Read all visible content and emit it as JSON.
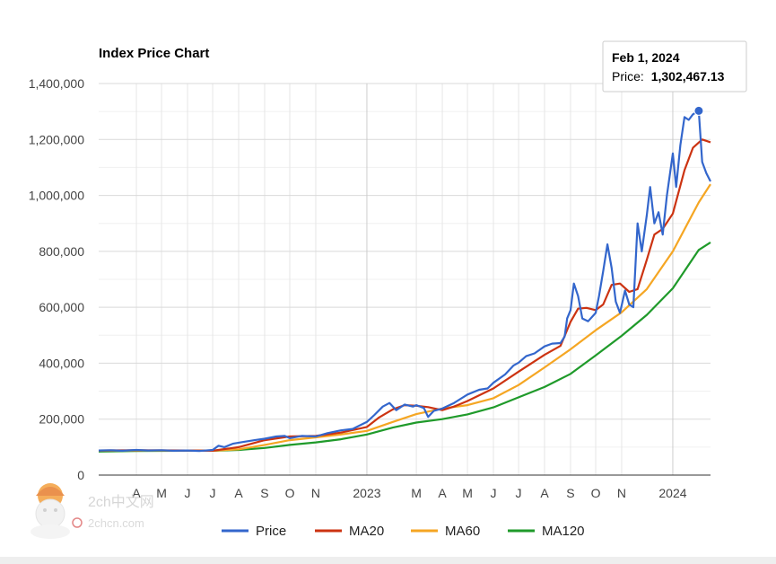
{
  "chart_data": {
    "type": "line",
    "title": "Index Price Chart",
    "xlabel": "",
    "ylabel": "",
    "ylim": [
      0,
      1400000
    ],
    "y_ticks": [
      0,
      200000,
      400000,
      600000,
      800000,
      1000000,
      1200000,
      1400000
    ],
    "y_tick_labels": [
      "0",
      "200,000",
      "400,000",
      "600,000",
      "800,000",
      "1,000,000",
      "1,200,000",
      "1,400,000"
    ],
    "xlim": [
      "2022-02-15",
      "2024-02-15"
    ],
    "x_ticks": [
      {
        "date": "2022-04-01",
        "label": "A"
      },
      {
        "date": "2022-05-01",
        "label": "M"
      },
      {
        "date": "2022-06-01",
        "label": "J"
      },
      {
        "date": "2022-07-01",
        "label": "J"
      },
      {
        "date": "2022-08-01",
        "label": "A"
      },
      {
        "date": "2022-09-01",
        "label": "S"
      },
      {
        "date": "2022-10-01",
        "label": "O"
      },
      {
        "date": "2022-11-01",
        "label": "N"
      },
      {
        "date": "2023-01-01",
        "label": "2023"
      },
      {
        "date": "2023-03-01",
        "label": "M"
      },
      {
        "date": "2023-04-01",
        "label": "A"
      },
      {
        "date": "2023-05-01",
        "label": "M"
      },
      {
        "date": "2023-06-01",
        "label": "J"
      },
      {
        "date": "2023-07-01",
        "label": "J"
      },
      {
        "date": "2023-08-01",
        "label": "A"
      },
      {
        "date": "2023-09-01",
        "label": "S"
      },
      {
        "date": "2023-10-01",
        "label": "O"
      },
      {
        "date": "2023-11-01",
        "label": "N"
      },
      {
        "date": "2024-01-01",
        "label": "2024"
      }
    ],
    "grid": true,
    "legend_position": "bottom",
    "series": [
      {
        "name": "Price",
        "color": "#3366cc",
        "points": [
          [
            "2022-02-15",
            88000
          ],
          [
            "2022-03-01",
            89000
          ],
          [
            "2022-03-15",
            87000
          ],
          [
            "2022-04-01",
            90000
          ],
          [
            "2022-04-15",
            88000
          ],
          [
            "2022-05-01",
            89000
          ],
          [
            "2022-05-15",
            87000
          ],
          [
            "2022-06-01",
            88000
          ],
          [
            "2022-06-15",
            86000
          ],
          [
            "2022-07-01",
            90000
          ],
          [
            "2022-07-08",
            105000
          ],
          [
            "2022-07-15",
            100000
          ],
          [
            "2022-07-25",
            112000
          ],
          [
            "2022-08-05",
            118000
          ],
          [
            "2022-08-20",
            125000
          ],
          [
            "2022-09-01",
            130000
          ],
          [
            "2022-09-15",
            138000
          ],
          [
            "2022-09-25",
            140000
          ],
          [
            "2022-10-01",
            132000
          ],
          [
            "2022-10-15",
            140000
          ],
          [
            "2022-11-01",
            138000
          ],
          [
            "2022-11-15",
            150000
          ],
          [
            "2022-12-01",
            160000
          ],
          [
            "2022-12-15",
            165000
          ],
          [
            "2023-01-01",
            190000
          ],
          [
            "2023-01-10",
            215000
          ],
          [
            "2023-01-20",
            245000
          ],
          [
            "2023-01-28",
            258000
          ],
          [
            "2023-02-05",
            232000
          ],
          [
            "2023-02-15",
            252000
          ],
          [
            "2023-02-25",
            245000
          ],
          [
            "2023-03-01",
            250000
          ],
          [
            "2023-03-10",
            240000
          ],
          [
            "2023-03-15",
            208000
          ],
          [
            "2023-03-22",
            230000
          ],
          [
            "2023-04-01",
            238000
          ],
          [
            "2023-04-15",
            258000
          ],
          [
            "2023-05-01",
            288000
          ],
          [
            "2023-05-15",
            305000
          ],
          [
            "2023-05-25",
            310000
          ],
          [
            "2023-06-01",
            330000
          ],
          [
            "2023-06-15",
            360000
          ],
          [
            "2023-06-25",
            392000
          ],
          [
            "2023-07-01",
            402000
          ],
          [
            "2023-07-10",
            425000
          ],
          [
            "2023-07-20",
            435000
          ],
          [
            "2023-08-01",
            460000
          ],
          [
            "2023-08-10",
            470000
          ],
          [
            "2023-08-20",
            472000
          ],
          [
            "2023-08-25",
            495000
          ],
          [
            "2023-08-28",
            560000
          ],
          [
            "2023-09-01",
            590000
          ],
          [
            "2023-09-05",
            685000
          ],
          [
            "2023-09-10",
            640000
          ],
          [
            "2023-09-15",
            560000
          ],
          [
            "2023-09-22",
            550000
          ],
          [
            "2023-10-01",
            580000
          ],
          [
            "2023-10-05",
            640000
          ],
          [
            "2023-10-10",
            730000
          ],
          [
            "2023-10-15",
            825000
          ],
          [
            "2023-10-20",
            740000
          ],
          [
            "2023-10-25",
            620000
          ],
          [
            "2023-10-30",
            580000
          ],
          [
            "2023-11-05",
            660000
          ],
          [
            "2023-11-10",
            610000
          ],
          [
            "2023-11-15",
            600000
          ],
          [
            "2023-11-20",
            900000
          ],
          [
            "2023-11-25",
            800000
          ],
          [
            "2023-12-01",
            930000
          ],
          [
            "2023-12-05",
            1030000
          ],
          [
            "2023-12-10",
            900000
          ],
          [
            "2023-12-15",
            940000
          ],
          [
            "2023-12-20",
            860000
          ],
          [
            "2023-12-25",
            1000000
          ],
          [
            "2024-01-01",
            1150000
          ],
          [
            "2024-01-05",
            1030000
          ],
          [
            "2024-01-10",
            1180000
          ],
          [
            "2024-01-15",
            1280000
          ],
          [
            "2024-01-20",
            1270000
          ],
          [
            "2024-01-25",
            1290000
          ],
          [
            "2024-02-01",
            1302467
          ],
          [
            "2024-02-05",
            1120000
          ],
          [
            "2024-02-10",
            1080000
          ],
          [
            "2024-02-15",
            1050000
          ]
        ]
      },
      {
        "name": "MA20",
        "color": "#cc3311",
        "points": [
          [
            "2022-02-15",
            88000
          ],
          [
            "2022-04-01",
            89000
          ],
          [
            "2022-06-01",
            88000
          ],
          [
            "2022-07-01",
            87000
          ],
          [
            "2022-08-01",
            100000
          ],
          [
            "2022-09-01",
            125000
          ],
          [
            "2022-10-01",
            138000
          ],
          [
            "2022-11-01",
            140000
          ],
          [
            "2022-12-01",
            152000
          ],
          [
            "2023-01-01",
            172000
          ],
          [
            "2023-01-15",
            205000
          ],
          [
            "2023-02-01",
            235000
          ],
          [
            "2023-02-15",
            250000
          ],
          [
            "2023-03-01",
            248000
          ],
          [
            "2023-03-15",
            243000
          ],
          [
            "2023-04-01",
            232000
          ],
          [
            "2023-04-15",
            245000
          ],
          [
            "2023-05-01",
            265000
          ],
          [
            "2023-06-01",
            310000
          ],
          [
            "2023-07-01",
            370000
          ],
          [
            "2023-08-01",
            430000
          ],
          [
            "2023-08-20",
            462000
          ],
          [
            "2023-09-01",
            548000
          ],
          [
            "2023-09-10",
            595000
          ],
          [
            "2023-09-20",
            598000
          ],
          [
            "2023-10-01",
            590000
          ],
          [
            "2023-10-10",
            610000
          ],
          [
            "2023-10-20",
            680000
          ],
          [
            "2023-10-30",
            685000
          ],
          [
            "2023-11-10",
            655000
          ],
          [
            "2023-11-20",
            665000
          ],
          [
            "2023-12-01",
            770000
          ],
          [
            "2023-12-10",
            860000
          ],
          [
            "2023-12-20",
            880000
          ],
          [
            "2024-01-01",
            935000
          ],
          [
            "2024-01-15",
            1090000
          ],
          [
            "2024-01-25",
            1170000
          ],
          [
            "2024-02-05",
            1200000
          ],
          [
            "2024-02-15",
            1190000
          ]
        ]
      },
      {
        "name": "MA60",
        "color": "#f5a623",
        "points": [
          [
            "2022-02-15",
            88000
          ],
          [
            "2022-06-01",
            88000
          ],
          [
            "2022-07-01",
            87000
          ],
          [
            "2022-08-01",
            92000
          ],
          [
            "2022-09-01",
            108000
          ],
          [
            "2022-10-01",
            125000
          ],
          [
            "2022-11-01",
            135000
          ],
          [
            "2022-12-01",
            145000
          ],
          [
            "2023-01-01",
            158000
          ],
          [
            "2023-02-01",
            190000
          ],
          [
            "2023-03-01",
            218000
          ],
          [
            "2023-04-01",
            238000
          ],
          [
            "2023-05-01",
            250000
          ],
          [
            "2023-06-01",
            275000
          ],
          [
            "2023-07-01",
            322000
          ],
          [
            "2023-08-01",
            385000
          ],
          [
            "2023-09-01",
            450000
          ],
          [
            "2023-10-01",
            518000
          ],
          [
            "2023-11-01",
            582000
          ],
          [
            "2023-12-01",
            665000
          ],
          [
            "2024-01-01",
            800000
          ],
          [
            "2024-02-01",
            975000
          ],
          [
            "2024-02-15",
            1040000
          ]
        ]
      },
      {
        "name": "MA120",
        "color": "#1f9a2a",
        "points": [
          [
            "2022-02-15",
            84000
          ],
          [
            "2022-04-01",
            86000
          ],
          [
            "2022-06-01",
            87000
          ],
          [
            "2022-07-01",
            87000
          ],
          [
            "2022-08-01",
            90000
          ],
          [
            "2022-09-01",
            97000
          ],
          [
            "2022-10-01",
            108000
          ],
          [
            "2022-11-01",
            117000
          ],
          [
            "2022-12-01",
            128000
          ],
          [
            "2023-01-01",
            145000
          ],
          [
            "2023-02-01",
            170000
          ],
          [
            "2023-03-01",
            188000
          ],
          [
            "2023-04-01",
            200000
          ],
          [
            "2023-05-01",
            217000
          ],
          [
            "2023-06-01",
            242000
          ],
          [
            "2023-07-01",
            278000
          ],
          [
            "2023-08-01",
            315000
          ],
          [
            "2023-09-01",
            362000
          ],
          [
            "2023-10-01",
            428000
          ],
          [
            "2023-11-01",
            498000
          ],
          [
            "2023-12-01",
            573000
          ],
          [
            "2024-01-01",
            668000
          ],
          [
            "2024-02-01",
            805000
          ],
          [
            "2024-02-15",
            832000
          ]
        ]
      }
    ],
    "highlight": {
      "date": "2024-02-01",
      "value": 1302467.13,
      "series": "Price"
    }
  },
  "tooltip": {
    "date_label": "Feb 1, 2024",
    "price_label": "Price: ",
    "price_value": "1,302,467.13"
  },
  "watermark": {
    "text": "2ch中文网",
    "subtext": "2chcn.com"
  }
}
